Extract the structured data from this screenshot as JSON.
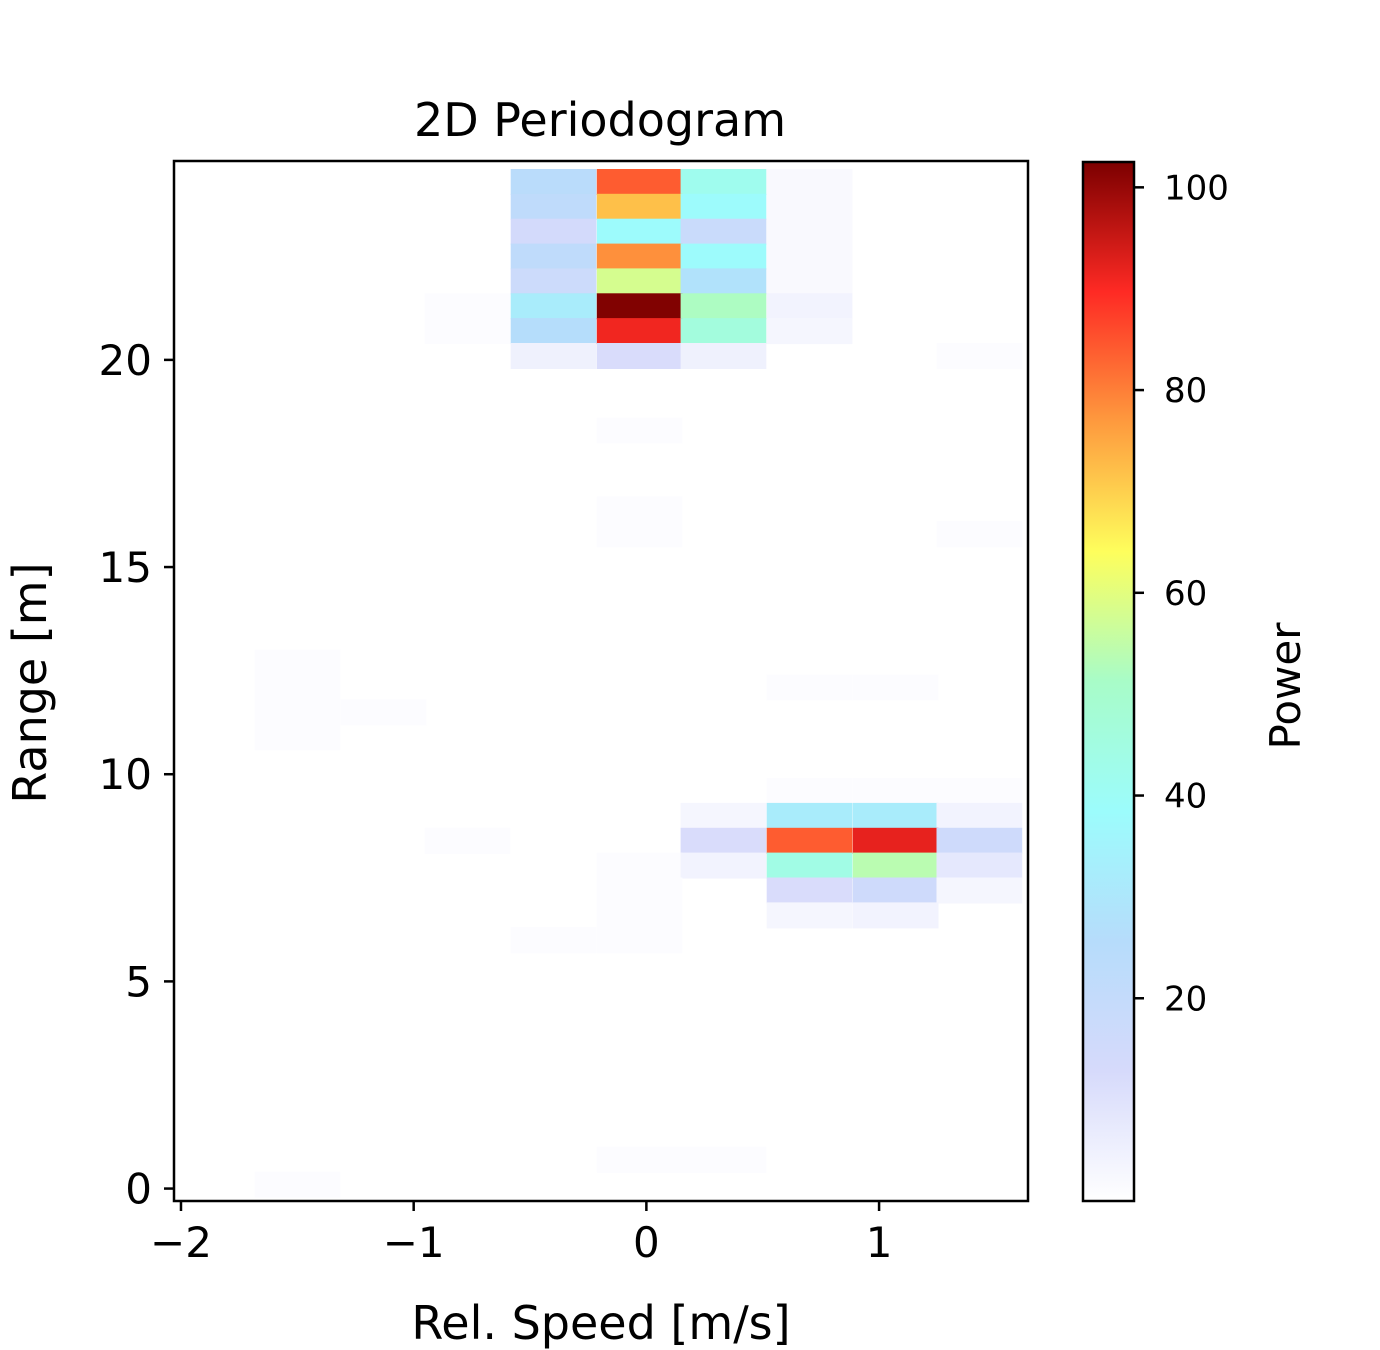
{
  "chart_data": {
    "type": "heatmap",
    "title": "2D Periodogram",
    "xlabel": "Rel. Speed [m/s]",
    "ylabel": "Range [m]",
    "colorbar_label": "Power",
    "colormap": [
      "#ffffff",
      "#d6dafb",
      "#b6dcfb",
      "#9cfcfc",
      "#a8fcc8",
      "#fefe5c",
      "#fe9a3e",
      "#fe2a24",
      "#7c0000"
    ],
    "xlim": [
      -2.03,
      1.64
    ],
    "ylim": [
      -0.3,
      24.8
    ],
    "x_ticks": [
      {
        "value": -2,
        "label": "−2"
      },
      {
        "value": -1,
        "label": "−1"
      },
      {
        "value": 0,
        "label": "0"
      },
      {
        "value": 1,
        "label": "1"
      }
    ],
    "y_ticks": [
      {
        "value": 0,
        "label": "0"
      },
      {
        "value": 5,
        "label": "5"
      },
      {
        "value": 10,
        "label": "10"
      },
      {
        "value": 15,
        "label": "15"
      },
      {
        "value": 20,
        "label": "20"
      }
    ],
    "colorbar_range": [
      0,
      102.5
    ],
    "colorbar_ticks": [
      {
        "value": 20,
        "label": "20"
      },
      {
        "value": 40,
        "label": "40"
      },
      {
        "value": 60,
        "label": "60"
      },
      {
        "value": 80,
        "label": "80"
      },
      {
        "value": 100,
        "label": "100"
      }
    ],
    "cell_width": 0.366,
    "cell_height": 0.615,
    "cells": [
      {
        "x": -0.4,
        "y": 24.3,
        "v": 24
      },
      {
        "x": -0.03,
        "y": 24.3,
        "v": 84
      },
      {
        "x": 0.33,
        "y": 24.3,
        "v": 42
      },
      {
        "x": 0.7,
        "y": 24.3,
        "v": 2
      },
      {
        "x": -0.4,
        "y": 23.7,
        "v": 22
      },
      {
        "x": -0.03,
        "y": 23.7,
        "v": 72
      },
      {
        "x": 0.33,
        "y": 23.7,
        "v": 38
      },
      {
        "x": 0.7,
        "y": 23.7,
        "v": 2
      },
      {
        "x": -0.4,
        "y": 23.1,
        "v": 14
      },
      {
        "x": -0.03,
        "y": 23.1,
        "v": 38
      },
      {
        "x": 0.33,
        "y": 23.1,
        "v": 18
      },
      {
        "x": 0.7,
        "y": 23.1,
        "v": 2
      },
      {
        "x": -0.4,
        "y": 22.5,
        "v": 22
      },
      {
        "x": -0.03,
        "y": 22.5,
        "v": 78
      },
      {
        "x": 0.33,
        "y": 22.5,
        "v": 38
      },
      {
        "x": 0.7,
        "y": 22.5,
        "v": 2
      },
      {
        "x": -0.4,
        "y": 21.9,
        "v": 17
      },
      {
        "x": -0.03,
        "y": 21.9,
        "v": 58
      },
      {
        "x": 0.33,
        "y": 21.9,
        "v": 28
      },
      {
        "x": 0.7,
        "y": 21.9,
        "v": 2
      },
      {
        "x": -0.77,
        "y": 21.3,
        "v": 1
      },
      {
        "x": -0.4,
        "y": 21.3,
        "v": 32
      },
      {
        "x": -0.03,
        "y": 21.3,
        "v": 102
      },
      {
        "x": 0.33,
        "y": 21.3,
        "v": 52
      },
      {
        "x": 0.7,
        "y": 21.3,
        "v": 4
      },
      {
        "x": -0.77,
        "y": 20.7,
        "v": 1
      },
      {
        "x": -0.4,
        "y": 20.7,
        "v": 26
      },
      {
        "x": -0.03,
        "y": 20.7,
        "v": 91
      },
      {
        "x": 0.33,
        "y": 20.7,
        "v": 46
      },
      {
        "x": 0.7,
        "y": 20.7,
        "v": 3
      },
      {
        "x": -0.4,
        "y": 20.1,
        "v": 5
      },
      {
        "x": -0.03,
        "y": 20.1,
        "v": 12
      },
      {
        "x": 0.33,
        "y": 20.1,
        "v": 5
      },
      {
        "x": 1.43,
        "y": 20.1,
        "v": 1
      },
      {
        "x": -0.03,
        "y": 18.3,
        "v": 1
      },
      {
        "x": -0.03,
        "y": 16.4,
        "v": 1
      },
      {
        "x": -0.03,
        "y": 15.8,
        "v": 1
      },
      {
        "x": 1.43,
        "y": 15.8,
        "v": 1
      },
      {
        "x": -1.5,
        "y": 12.7,
        "v": 1
      },
      {
        "x": 0.7,
        "y": 12.1,
        "v": 1
      },
      {
        "x": 1.07,
        "y": 12.1,
        "v": 1
      },
      {
        "x": -1.5,
        "y": 12.1,
        "v": 1
      },
      {
        "x": -1.13,
        "y": 11.5,
        "v": 1
      },
      {
        "x": -1.5,
        "y": 11.5,
        "v": 1
      },
      {
        "x": -1.5,
        "y": 10.9,
        "v": 1
      },
      {
        "x": 0.7,
        "y": 9.6,
        "v": 1
      },
      {
        "x": 1.07,
        "y": 9.6,
        "v": 1
      },
      {
        "x": 1.43,
        "y": 9.6,
        "v": 1
      },
      {
        "x": 0.33,
        "y": 9.0,
        "v": 3
      },
      {
        "x": 0.7,
        "y": 9.0,
        "v": 32
      },
      {
        "x": 1.07,
        "y": 9.0,
        "v": 32
      },
      {
        "x": 1.43,
        "y": 9.0,
        "v": 4
      },
      {
        "x": -0.77,
        "y": 8.4,
        "v": 1
      },
      {
        "x": 0.33,
        "y": 8.4,
        "v": 12
      },
      {
        "x": 0.7,
        "y": 8.4,
        "v": 84
      },
      {
        "x": 1.07,
        "y": 8.4,
        "v": 92
      },
      {
        "x": 1.43,
        "y": 8.4,
        "v": 16
      },
      {
        "x": -0.03,
        "y": 7.8,
        "v": 1
      },
      {
        "x": 0.33,
        "y": 7.8,
        "v": 4
      },
      {
        "x": 0.7,
        "y": 7.8,
        "v": 44
      },
      {
        "x": 1.07,
        "y": 7.8,
        "v": 54
      },
      {
        "x": 1.43,
        "y": 7.8,
        "v": 8
      },
      {
        "x": -0.03,
        "y": 7.2,
        "v": 1
      },
      {
        "x": 0.7,
        "y": 7.2,
        "v": 12
      },
      {
        "x": 1.07,
        "y": 7.2,
        "v": 16
      },
      {
        "x": 1.43,
        "y": 7.2,
        "v": 3
      },
      {
        "x": -0.03,
        "y": 6.6,
        "v": 1
      },
      {
        "x": 0.7,
        "y": 6.6,
        "v": 3
      },
      {
        "x": 1.07,
        "y": 6.6,
        "v": 4
      },
      {
        "x": -0.4,
        "y": 6.0,
        "v": 1
      },
      {
        "x": -0.03,
        "y": 6.0,
        "v": 1
      },
      {
        "x": -0.03,
        "y": 0.7,
        "v": 1
      },
      {
        "x": 0.33,
        "y": 0.7,
        "v": 1
      },
      {
        "x": -1.5,
        "y": 0.1,
        "v": 1
      }
    ]
  }
}
